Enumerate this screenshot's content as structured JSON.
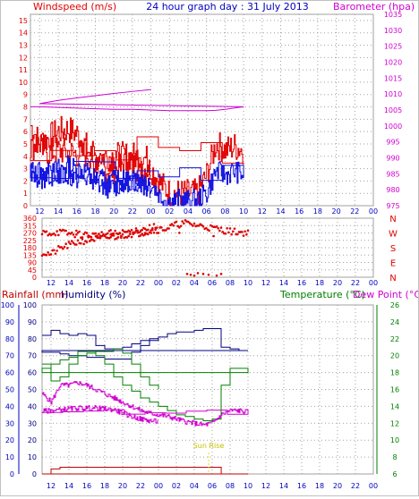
{
  "header": {
    "left": "Windspeed (m/s)",
    "center": "24 hour graph day : 31 July 2013",
    "right": "Barometer (hpa)"
  },
  "colors": {
    "wind": "#e00000",
    "gust_avg": "#1010e0",
    "baro": "#d000d0",
    "rain": "#c00000",
    "humidity": "#000080",
    "temperature": "#008000",
    "dewpoint": "#d000d0",
    "sunrise": "#e0e000",
    "grid": "#a0a0a0"
  },
  "x_ticks": [
    "12",
    "14",
    "16",
    "18",
    "20",
    "22",
    "00",
    "02",
    "04",
    "06",
    "08",
    "10",
    "12",
    "14",
    "16",
    "18",
    "20",
    "22",
    "00"
  ],
  "panels": {
    "wind": {
      "left_ticks": [
        "0",
        "1",
        "2",
        "3",
        "4",
        "5",
        "6",
        "7",
        "8",
        "9",
        "10",
        "11",
        "12",
        "13",
        "14",
        "15"
      ],
      "right_ticks": [
        "975",
        "980",
        "985",
        "990",
        "995",
        "1000",
        "1005",
        "1010",
        "1015",
        "1020",
        "1025",
        "1030",
        "1035"
      ]
    },
    "direction": {
      "left_ticks": [
        "0",
        "45",
        "90",
        "135",
        "180",
        "225",
        "270",
        "315",
        "360"
      ],
      "right_labels": [
        "N",
        "W",
        "S",
        "E",
        "N"
      ]
    },
    "lower": {
      "labels": {
        "rainfall": "Rainfall (mm)",
        "humidity": "Humidity (%)",
        "temperature": "Temperature (°C)",
        "dewpoint": "Dew Point (°C)"
      },
      "rain_ticks": [
        "0",
        "10",
        "20",
        "30",
        "40",
        "50",
        "60",
        "70",
        "80",
        "90",
        "100"
      ],
      "humidity_ticks": [
        "0",
        "10",
        "20",
        "30",
        "40",
        "50",
        "60",
        "70",
        "80",
        "90",
        "100"
      ],
      "temp_ticks": [
        "6",
        "8",
        "10",
        "12",
        "14",
        "16",
        "18",
        "20",
        "22",
        "24",
        "26"
      ],
      "sunrise_label": "Sun Rise"
    }
  },
  "chart_data": [
    {
      "type": "line",
      "panel": "wind",
      "x_unit": "hour (12:00 30 Jul → 00:00 1 Aug)",
      "ylim": [
        0,
        15.5
      ],
      "y2lim": [
        975,
        1035
      ],
      "series": [
        {
          "role": "windspeed_max",
          "x": [
            11,
            12,
            13,
            14,
            15,
            16,
            17,
            18,
            19,
            20,
            21,
            22,
            23,
            0,
            1,
            2,
            3,
            4,
            5,
            6,
            7,
            8,
            9,
            10,
            11,
            12,
            13,
            14,
            15,
            16,
            17,
            18,
            19,
            20,
            21,
            22,
            23,
            24
          ],
          "values": [
            6.5,
            5.0,
            5.5,
            6.0,
            6.2,
            5.8,
            4.8,
            3.2,
            3.0,
            2.8,
            3.5,
            3.3,
            3.0,
            3.0,
            1.8,
            1.0,
            1.0,
            1.0,
            1.0,
            2.5,
            5.0,
            4.5,
            4.8,
            4.5,
            4.8,
            5.0,
            4.3,
            4.5,
            4.3,
            4.2,
            4.2,
            4.0,
            4.0,
            4.0,
            4.0,
            4.0,
            4.0,
            3.5
          ]
        },
        {
          "role": "windspeed_avg",
          "x": [
            11,
            12,
            13,
            14,
            15,
            16,
            17,
            18,
            19,
            20,
            21,
            22,
            23,
            0,
            1,
            2,
            3,
            4,
            5,
            6,
            7,
            8,
            9,
            10,
            11,
            12,
            13,
            14,
            15,
            16,
            17,
            18,
            19,
            20,
            21,
            22,
            23,
            24
          ],
          "values": [
            3.0,
            2.0,
            2.5,
            3.0,
            3.2,
            3.0,
            2.8,
            1.8,
            1.5,
            1.5,
            2.0,
            2.0,
            2.0,
            1.8,
            0.8,
            0.3,
            0.5,
            0.4,
            0.5,
            1.0,
            2.8,
            2.5,
            2.8,
            2.5,
            2.8,
            3.0,
            2.5,
            2.5,
            2.4,
            2.2,
            2.2,
            2.2,
            2.0,
            2.0,
            2.0,
            2.0,
            1.8,
            1.2
          ]
        },
        {
          "role": "barometer",
          "x": [
            11,
            12,
            14,
            16,
            18,
            20,
            22,
            0,
            2,
            4,
            6,
            7,
            8,
            10,
            12,
            14,
            16,
            18,
            20,
            22,
            24
          ],
          "values": [
            1006.0,
            1006.0,
            1005.8,
            1005.6,
            1005.4,
            1005.2,
            1005.2,
            1005.0,
            1004.8,
            1004.8,
            1004.8,
            1004.9,
            1005.2,
            1006.0,
            1007.0,
            1008.0,
            1008.8,
            1009.5,
            1010.2,
            1010.8,
            1011.4
          ]
        }
      ]
    },
    {
      "type": "scatter",
      "panel": "direction",
      "ylim": [
        0,
        360
      ],
      "x": [
        11,
        12,
        13,
        14,
        15,
        16,
        17,
        18,
        19,
        20,
        21,
        22,
        23,
        0,
        1,
        2,
        3,
        4,
        5,
        6,
        7,
        8,
        9,
        10,
        11,
        12,
        13,
        14,
        15,
        16,
        17,
        18,
        19,
        20,
        21,
        22,
        23,
        24
      ],
      "values": [
        150,
        140,
        175,
        195,
        215,
        225,
        235,
        240,
        245,
        255,
        265,
        270,
        280,
        290,
        300,
        320,
        330,
        320,
        310,
        300,
        290,
        280,
        275,
        270,
        270,
        270,
        275,
        265,
        260,
        260,
        255,
        260,
        265,
        270,
        280,
        290,
        300,
        310
      ],
      "outliers": {
        "x": [
          3.2,
          3.6,
          4.0,
          4.4,
          5.0,
          5.6,
          6.5,
          7.0
        ],
        "values": [
          20,
          15,
          10,
          25,
          20,
          15,
          10,
          20
        ]
      }
    },
    {
      "type": "line",
      "panel": "lower",
      "ylim": [
        0,
        100
      ],
      "y2lim": [
        6,
        26
      ],
      "series": [
        {
          "role": "humidity",
          "x": [
            11,
            12,
            13,
            14,
            15,
            16,
            17,
            18,
            19,
            20,
            21,
            22,
            23,
            0,
            1,
            2,
            3,
            4,
            5,
            6,
            7,
            8,
            9,
            10,
            11,
            12,
            13,
            14,
            15,
            16,
            17,
            18,
            19,
            20,
            21,
            22,
            23,
            24
          ],
          "values": [
            82,
            85,
            83,
            82,
            83,
            82,
            76,
            74,
            74,
            75,
            77,
            79,
            80,
            81,
            83,
            84,
            84,
            85,
            86,
            86,
            75,
            74,
            73,
            73,
            72,
            72,
            71,
            70,
            70,
            69,
            69,
            68,
            68,
            68,
            72,
            76,
            79,
            80
          ]
        },
        {
          "role": "temperature",
          "x": [
            11,
            12,
            13,
            14,
            15,
            16,
            17,
            18,
            19,
            20,
            21,
            22,
            23,
            0,
            1,
            2,
            3,
            4,
            5,
            6,
            7,
            8,
            9,
            10,
            11,
            12,
            13,
            14,
            15,
            16,
            17,
            18,
            19,
            20,
            21,
            22,
            23,
            24
          ],
          "values": [
            19.0,
            17.0,
            17.5,
            19.0,
            20.5,
            20.5,
            20.0,
            19.0,
            17.5,
            16.5,
            15.8,
            15.0,
            14.5,
            14.0,
            13.5,
            13.0,
            12.8,
            12.5,
            12.3,
            12.5,
            16.5,
            18.5,
            18.5,
            18.0,
            18.5,
            19.0,
            19.5,
            19.8,
            20.0,
            20.3,
            20.5,
            20.5,
            20.8,
            20.3,
            19.0,
            17.5,
            16.5,
            16.0
          ]
        },
        {
          "role": "dewpoint",
          "x": [
            11,
            12,
            13,
            14,
            15,
            16,
            17,
            18,
            19,
            20,
            21,
            22,
            23,
            0,
            1,
            2,
            3,
            4,
            5,
            6,
            7,
            8,
            9,
            10,
            11,
            12,
            13,
            14,
            15,
            16,
            17,
            18,
            19,
            20,
            21,
            22,
            23,
            24
          ],
          "values": [
            15.5,
            14.5,
            16.5,
            16.5,
            16.8,
            16.5,
            16.0,
            15.5,
            15.0,
            14.5,
            14.0,
            13.5,
            13.2,
            13.0,
            12.8,
            12.5,
            12.2,
            12.0,
            11.8,
            12.0,
            13.0,
            13.5,
            13.5,
            13.3,
            13.4,
            13.5,
            13.6,
            13.7,
            13.8,
            13.8,
            13.8,
            13.7,
            13.6,
            13.2,
            12.8,
            12.5,
            12.3,
            12.2
          ]
        },
        {
          "role": "rainfall",
          "x": [
            11,
            12,
            13,
            14,
            16,
            18,
            20,
            22,
            0,
            2,
            4,
            6,
            7,
            7.01,
            8,
            10,
            12,
            14,
            16,
            18,
            20,
            22,
            24
          ],
          "values": [
            0,
            3,
            4,
            4,
            4,
            4,
            4,
            4,
            4,
            4,
            4,
            4,
            4,
            0,
            0,
            0,
            0,
            0,
            0,
            0,
            0,
            0,
            0
          ]
        }
      ],
      "sunrise_x": 5.6
    }
  ]
}
